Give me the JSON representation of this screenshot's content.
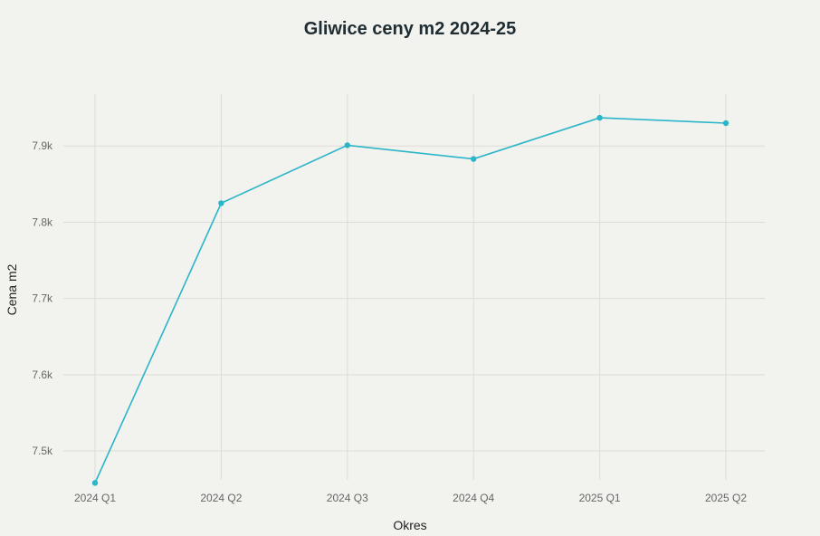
{
  "chart_data": {
    "type": "line",
    "title": "Gliwice ceny m2 2024-25",
    "xlabel": "Okres",
    "ylabel": "Cena m2",
    "categories": [
      "2024 Q1",
      "2024 Q2",
      "2024 Q3",
      "2024 Q4",
      "2025 Q1",
      "2025 Q2"
    ],
    "values": [
      7458,
      7825,
      7901,
      7883,
      7937,
      7930
    ],
    "ylim": [
      7462,
      7968
    ],
    "yticks": [
      7500,
      7600,
      7700,
      7800,
      7900
    ],
    "ytick_labels": [
      "7.5k",
      "7.6k",
      "7.7k",
      "7.8k",
      "7.9k"
    ],
    "grid": true,
    "legend": false,
    "color": "#2bb5c8"
  }
}
